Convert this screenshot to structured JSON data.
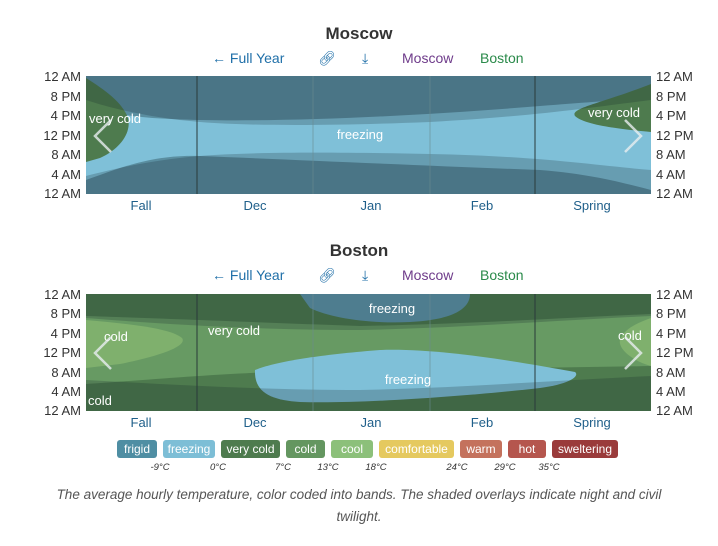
{
  "chart_data": [
    {
      "type": "heatmap",
      "title": "Moscow",
      "x_categories": [
        "Fall",
        "Dec",
        "Jan",
        "Feb",
        "Spring"
      ],
      "y_ticks": [
        "12 AM",
        "8 PM",
        "4 PM",
        "12 PM",
        "8 AM",
        "4 AM",
        "12 AM"
      ],
      "bands": [
        "very cold",
        "freezing"
      ],
      "annotations": [
        {
          "text": "very cold",
          "location": "left"
        },
        {
          "text": "freezing",
          "location": "center"
        },
        {
          "text": "very cold",
          "location": "right"
        }
      ]
    },
    {
      "type": "heatmap",
      "title": "Boston",
      "x_categories": [
        "Fall",
        "Dec",
        "Jan",
        "Feb",
        "Spring"
      ],
      "y_ticks": [
        "12 AM",
        "8 PM",
        "4 PM",
        "12 PM",
        "8 AM",
        "4 AM",
        "12 AM"
      ],
      "bands": [
        "cold",
        "very cold",
        "freezing"
      ],
      "annotations": [
        {
          "text": "cold",
          "location": "left"
        },
        {
          "text": "very cold",
          "location": "left-center"
        },
        {
          "text": "freezing",
          "location": "top-center"
        },
        {
          "text": "freezing",
          "location": "bottom-center"
        },
        {
          "text": "cold",
          "location": "right"
        },
        {
          "text": "cold",
          "location": "bottom-left"
        }
      ]
    }
  ],
  "toolbar": {
    "full_year_label": "Full Year",
    "moscow_label": "Moscow",
    "boston_label": "Boston",
    "link_icon": "link-icon",
    "download_icon": "download-icon",
    "back_icon": "arrow-left-icon"
  },
  "legend": {
    "items": [
      {
        "label": "frigid",
        "color": "#4f8ea3"
      },
      {
        "label": "freezing",
        "color": "#7dbed6"
      },
      {
        "label": "very cold",
        "color": "#4e7b4e"
      },
      {
        "label": "cold",
        "color": "#649660"
      },
      {
        "label": "cool",
        "color": "#8cc07a"
      },
      {
        "label": "comfortable",
        "color": "#e5c95f"
      },
      {
        "label": "warm",
        "color": "#c4725d"
      },
      {
        "label": "hot",
        "color": "#b5564e"
      },
      {
        "label": "sweltering",
        "color": "#9a3b3b"
      }
    ],
    "ticks": [
      "-9°C",
      "0°C",
      "7°C",
      "13°C",
      "18°C",
      "24°C",
      "29°C",
      "35°C"
    ]
  },
  "caption": "The average hourly temperature, color coded into bands. The shaded overlays indicate night and civil twilight.",
  "colors": {
    "frigid": "#5a8ea0",
    "freezing": "#7fc0d8",
    "very_cold": "#4e7b4e",
    "cold": "#679a63",
    "night_overlay": "rgba(20,30,40,0.25)"
  }
}
